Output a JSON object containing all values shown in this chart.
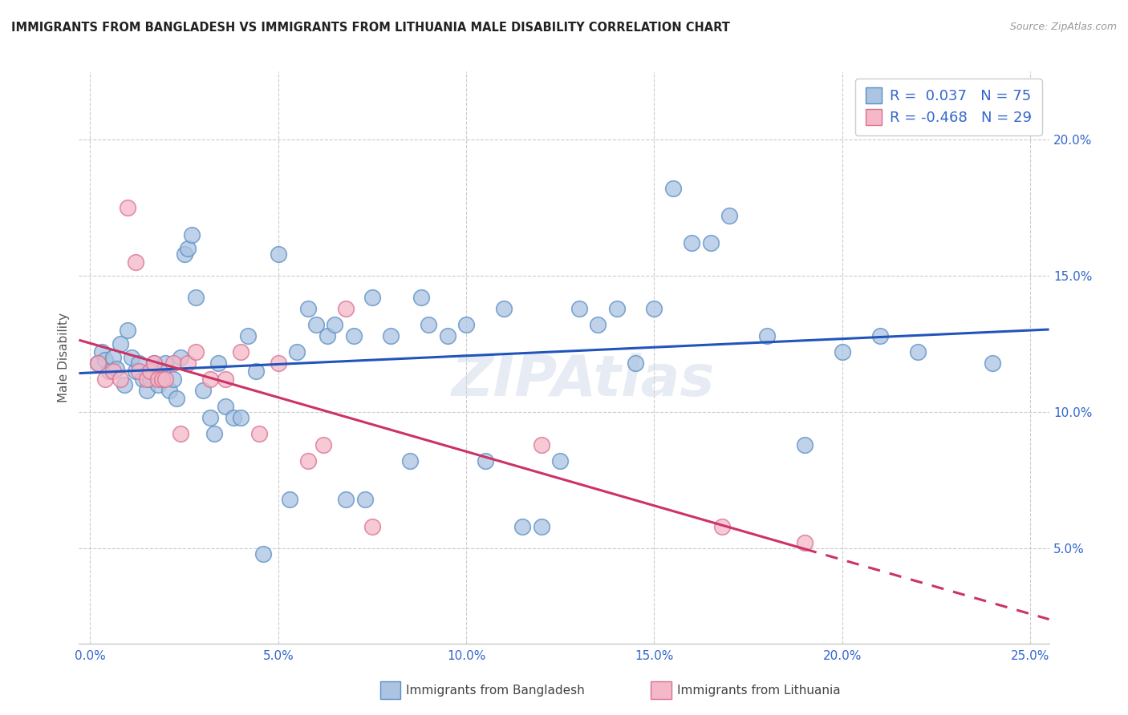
{
  "title": "IMMIGRANTS FROM BANGLADESH VS IMMIGRANTS FROM LITHUANIA MALE DISABILITY CORRELATION CHART",
  "source": "Source: ZipAtlas.com",
  "ylabel": "Male Disability",
  "y_ticks": [
    0.05,
    0.1,
    0.15,
    0.2
  ],
  "y_tick_labels": [
    "5.0%",
    "10.0%",
    "15.0%",
    "20.0%"
  ],
  "x_ticks": [
    0.0,
    0.05,
    0.1,
    0.15,
    0.2,
    0.25
  ],
  "x_tick_labels": [
    "0.0%",
    "5.0%",
    "10.0%",
    "15.0%",
    "20.0%",
    "25.0%"
  ],
  "xlim": [
    -0.003,
    0.255
  ],
  "ylim": [
    0.015,
    0.225
  ],
  "bangladesh_color": "#aac4e2",
  "bangladesh_edge": "#5b8ec4",
  "lithuania_color": "#f4b8c8",
  "lithuania_edge": "#d97090",
  "trend_bangladesh_color": "#2255bb",
  "trend_lithuania_color": "#cc3366",
  "R_bangladesh": 0.037,
  "N_bangladesh": 75,
  "R_lithuania": -0.468,
  "N_lithuania": 29,
  "legend_label_bangladesh": "Immigrants from Bangladesh",
  "legend_label_lithuania": "Immigrants from Lithuania",
  "background_color": "#ffffff",
  "grid_color": "#cccccc",
  "watermark": "ZIPAtlas",
  "bangladesh_x": [
    0.002,
    0.003,
    0.004,
    0.005,
    0.006,
    0.007,
    0.008,
    0.009,
    0.01,
    0.011,
    0.012,
    0.013,
    0.014,
    0.015,
    0.015,
    0.016,
    0.017,
    0.018,
    0.019,
    0.02,
    0.021,
    0.022,
    0.023,
    0.024,
    0.025,
    0.026,
    0.027,
    0.028,
    0.03,
    0.032,
    0.033,
    0.034,
    0.036,
    0.038,
    0.04,
    0.042,
    0.044,
    0.046,
    0.05,
    0.053,
    0.055,
    0.058,
    0.06,
    0.063,
    0.065,
    0.068,
    0.07,
    0.073,
    0.075,
    0.08,
    0.085,
    0.088,
    0.09,
    0.095,
    0.1,
    0.105,
    0.11,
    0.115,
    0.12,
    0.125,
    0.13,
    0.135,
    0.14,
    0.145,
    0.15,
    0.155,
    0.16,
    0.165,
    0.17,
    0.18,
    0.19,
    0.2,
    0.21,
    0.22,
    0.24
  ],
  "bangladesh_y": [
    0.118,
    0.122,
    0.119,
    0.115,
    0.12,
    0.116,
    0.125,
    0.11,
    0.13,
    0.12,
    0.115,
    0.118,
    0.112,
    0.108,
    0.114,
    0.112,
    0.118,
    0.11,
    0.115,
    0.118,
    0.108,
    0.112,
    0.105,
    0.12,
    0.158,
    0.16,
    0.165,
    0.142,
    0.108,
    0.098,
    0.092,
    0.118,
    0.102,
    0.098,
    0.098,
    0.128,
    0.115,
    0.048,
    0.158,
    0.068,
    0.122,
    0.138,
    0.132,
    0.128,
    0.132,
    0.068,
    0.128,
    0.068,
    0.142,
    0.128,
    0.082,
    0.142,
    0.132,
    0.128,
    0.132,
    0.082,
    0.138,
    0.058,
    0.058,
    0.082,
    0.138,
    0.132,
    0.138,
    0.118,
    0.138,
    0.182,
    0.162,
    0.162,
    0.172,
    0.128,
    0.088,
    0.122,
    0.128,
    0.122,
    0.118
  ],
  "lithuania_x": [
    0.002,
    0.004,
    0.006,
    0.008,
    0.01,
    0.012,
    0.013,
    0.015,
    0.016,
    0.017,
    0.018,
    0.019,
    0.02,
    0.022,
    0.024,
    0.026,
    0.028,
    0.032,
    0.036,
    0.04,
    0.045,
    0.05,
    0.058,
    0.062,
    0.068,
    0.075,
    0.12,
    0.168,
    0.19
  ],
  "lithuania_y": [
    0.118,
    0.112,
    0.115,
    0.112,
    0.175,
    0.155,
    0.115,
    0.112,
    0.115,
    0.118,
    0.112,
    0.112,
    0.112,
    0.118,
    0.092,
    0.118,
    0.122,
    0.112,
    0.112,
    0.122,
    0.092,
    0.118,
    0.082,
    0.088,
    0.138,
    0.058,
    0.088,
    0.058,
    0.052
  ]
}
